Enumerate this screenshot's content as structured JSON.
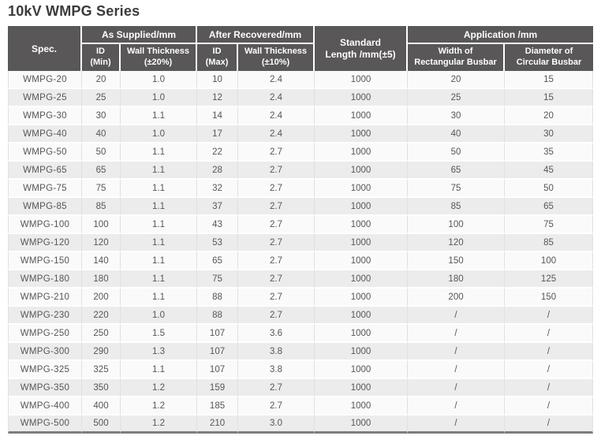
{
  "title": "10kV WMPG Series",
  "colors": {
    "header_bg": "#595758",
    "header_text": "#ffffff",
    "row_base": "#fafafa",
    "row_alt": "#ececec",
    "divider": "#e0e0e0",
    "body_text": "#565658",
    "title_text": "#3b3b3d",
    "bottom_border": "#7d7d7f"
  },
  "table": {
    "header": {
      "spec": "Spec.",
      "as_supplied": "As Supplied/mm",
      "after_recovered": "After Recovered/mm",
      "standard_length_line1": "Standard",
      "standard_length_line2": "Length /mm(±5)",
      "application": "Application /mm",
      "id_min_line1": "ID",
      "id_min_line2": "(Min)",
      "wall_thickness_20_line1": "Wall Thickness",
      "wall_thickness_20_line2": "(±20%)",
      "id_max_line1": "ID",
      "id_max_line2": "(Max)",
      "wall_thickness_10_line1": "Wall Thickness",
      "wall_thickness_10_line2": "(±10%)",
      "width_rect_line1": "Width of",
      "width_rect_line2": "Rectangular Busbar",
      "dia_circ_line1": "Diameter of",
      "dia_circ_line2": "Circular Busbar"
    },
    "field_names": [
      "spec",
      "id_min",
      "wall_thickness_20",
      "id_max",
      "wall_thickness_10",
      "standard_length",
      "width_rectangular_busbar",
      "diameter_circular_busbar"
    ],
    "rows": [
      [
        "WMPG-20",
        "20",
        "1.0",
        "10",
        "2.4",
        "1000",
        "20",
        "15"
      ],
      [
        "WMPG-25",
        "25",
        "1.0",
        "12",
        "2.4",
        "1000",
        "25",
        "15"
      ],
      [
        "WMPG-30",
        "30",
        "1.1",
        "14",
        "2.4",
        "1000",
        "30",
        "20"
      ],
      [
        "WMPG-40",
        "40",
        "1.0",
        "17",
        "2.4",
        "1000",
        "40",
        "30"
      ],
      [
        "WMPG-50",
        "50",
        "1.1",
        "22",
        "2.7",
        "1000",
        "50",
        "35"
      ],
      [
        "WMPG-65",
        "65",
        "1.1",
        "28",
        "2.7",
        "1000",
        "65",
        "45"
      ],
      [
        "WMPG-75",
        "75",
        "1.1",
        "32",
        "2.7",
        "1000",
        "75",
        "50"
      ],
      [
        "WMPG-85",
        "85",
        "1.1",
        "37",
        "2.7",
        "1000",
        "85",
        "65"
      ],
      [
        "WMPG-100",
        "100",
        "1.1",
        "43",
        "2.7",
        "1000",
        "100",
        "75"
      ],
      [
        "WMPG-120",
        "120",
        "1.1",
        "53",
        "2.7",
        "1000",
        "120",
        "85"
      ],
      [
        "WMPG-150",
        "140",
        "1.1",
        "65",
        "2.7",
        "1000",
        "150",
        "100"
      ],
      [
        "WMPG-180",
        "180",
        "1.1",
        "75",
        "2.7",
        "1000",
        "180",
        "125"
      ],
      [
        "WMPG-210",
        "200",
        "1.1",
        "88",
        "2.7",
        "1000",
        "200",
        "150"
      ],
      [
        "WMPG-230",
        "220",
        "1.0",
        "88",
        "2.7",
        "1000",
        "/",
        "/"
      ],
      [
        "WMPG-250",
        "250",
        "1.5",
        "107",
        "3.6",
        "1000",
        "/",
        "/"
      ],
      [
        "WMPG-300",
        "290",
        "1.3",
        "107",
        "3.8",
        "1000",
        "/",
        "/"
      ],
      [
        "WMPG-325",
        "325",
        "1.1",
        "107",
        "3.8",
        "1000",
        "/",
        "/"
      ],
      [
        "WMPG-350",
        "350",
        "1.2",
        "159",
        "2.7",
        "1000",
        "/",
        "/"
      ],
      [
        "WMPG-400",
        "400",
        "1.2",
        "185",
        "2.7",
        "1000",
        "/",
        "/"
      ],
      [
        "WMPG-500",
        "500",
        "1.2",
        "210",
        "3.0",
        "1000",
        "/",
        "/"
      ]
    ]
  }
}
